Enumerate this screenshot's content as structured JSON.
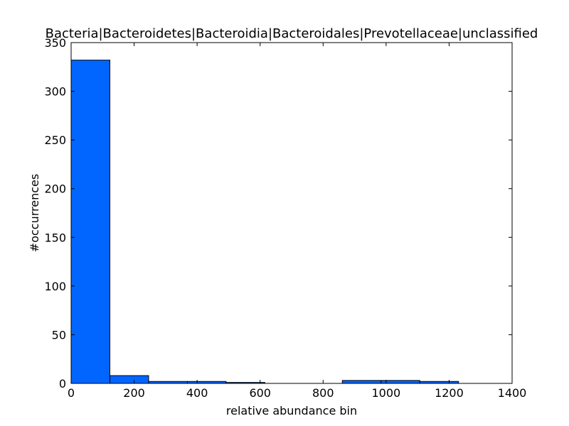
{
  "chart_data": {
    "type": "bar",
    "title": "Bacteria|Bacteroidetes|Bacteroidia|Bacteroidales|Prevotellaceae|unclassified",
    "xlabel": "relative abundance bin",
    "ylabel": "#occurrences",
    "xlim": [
      0,
      1400
    ],
    "ylim": [
      0,
      350
    ],
    "xticks": [
      "0",
      "200",
      "400",
      "600",
      "800",
      "1000",
      "1200",
      "1400"
    ],
    "yticks": [
      "0",
      "50",
      "100",
      "150",
      "200",
      "250",
      "300",
      "350"
    ],
    "grid": false,
    "bar_color": "#0066ff",
    "bins": [
      {
        "x0": 0,
        "x1": 123,
        "value": 332
      },
      {
        "x0": 123,
        "x1": 246,
        "value": 8
      },
      {
        "x0": 246,
        "x1": 369,
        "value": 2
      },
      {
        "x0": 369,
        "x1": 492,
        "value": 2
      },
      {
        "x0": 492,
        "x1": 615,
        "value": 1
      },
      {
        "x0": 615,
        "x1": 738,
        "value": 0
      },
      {
        "x0": 738,
        "x1": 861,
        "value": 0
      },
      {
        "x0": 861,
        "x1": 984,
        "value": 3
      },
      {
        "x0": 984,
        "x1": 1107,
        "value": 3
      },
      {
        "x0": 1107,
        "x1": 1230,
        "value": 2
      }
    ]
  }
}
